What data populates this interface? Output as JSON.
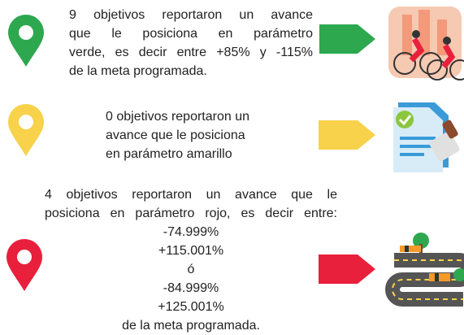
{
  "sections": [
    {
      "lines": [
        "9 objetivos reportaron un avance",
        "que le posiciona en parámetro",
        "verde, es decir entre +85% y -115%",
        "de la meta programada."
      ]
    },
    {
      "lines": [
        "0 objetivos reportaron un",
        "avance que le posiciona",
        "en parámetro amarillo"
      ]
    },
    {
      "lines": [
        "4 objetivos reportaron un avance que le",
        "posiciona en parámetro rojo, es decir entre:",
        "-74.999%",
        "+115.001%",
        "ó",
        "-84.999%",
        "+125.001%",
        "de la meta programada."
      ]
    }
  ]
}
